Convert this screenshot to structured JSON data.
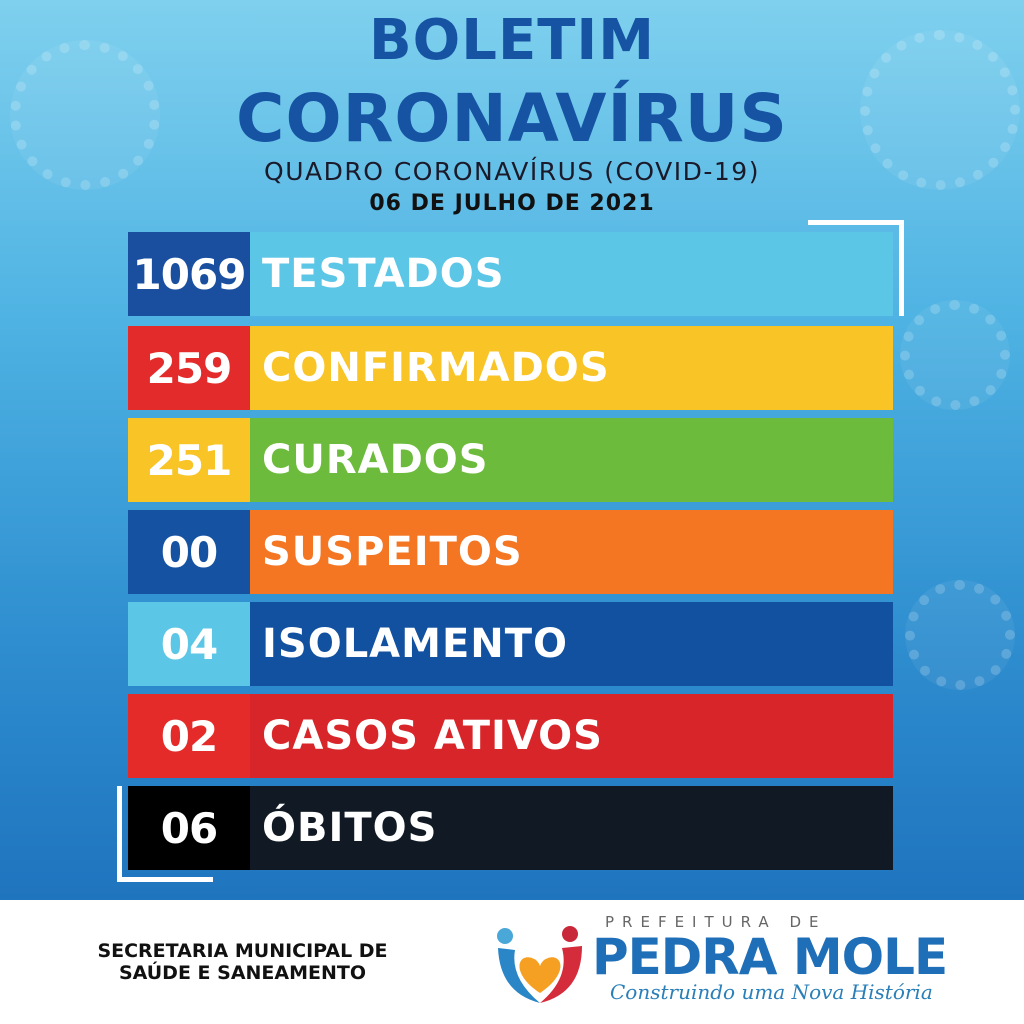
{
  "header": {
    "title_line1": "BOLETIM",
    "title_line2": "CORONAVÍRUS",
    "subtitle": "QUADRO CORONAVÍRUS (COVID-19)",
    "date": "06 DE JULHO DE 2021"
  },
  "rows": [
    {
      "value": "1069",
      "label": "TESTADOS",
      "num_color": "#1a4fa0",
      "bar_color": "#5cc6e6"
    },
    {
      "value": "259",
      "label": "CONFIRMADOS",
      "num_color": "#e32b2b",
      "bar_color": "#f8c426"
    },
    {
      "value": "251",
      "label": "CURADOS",
      "num_color": "#f8c426",
      "bar_color": "#6cbb3c"
    },
    {
      "value": "00",
      "label": "SUSPEITOS",
      "num_color": "#1553a2",
      "bar_color": "#f47623"
    },
    {
      "value": "04",
      "label": "ISOLAMENTO",
      "num_color": "#5cc6e6",
      "bar_color": "#1250a0"
    },
    {
      "value": "02",
      "label": "CASOS ATIVOS",
      "num_color": "#e52a2a",
      "bar_color": "#d8252a"
    },
    {
      "value": "06",
      "label": "ÓBITOS",
      "num_color": "#000000",
      "bar_color": "#111a24"
    }
  ],
  "footer": {
    "secretaria_line1": "SECRETARIA MUNICIPAL DE",
    "secretaria_line2": "SAÚDE E SANEAMENTO",
    "logo_top": "PREFEITURA DE",
    "logo_name": "PEDRA MOLE",
    "logo_slogan": "Construindo uma Nova História"
  }
}
